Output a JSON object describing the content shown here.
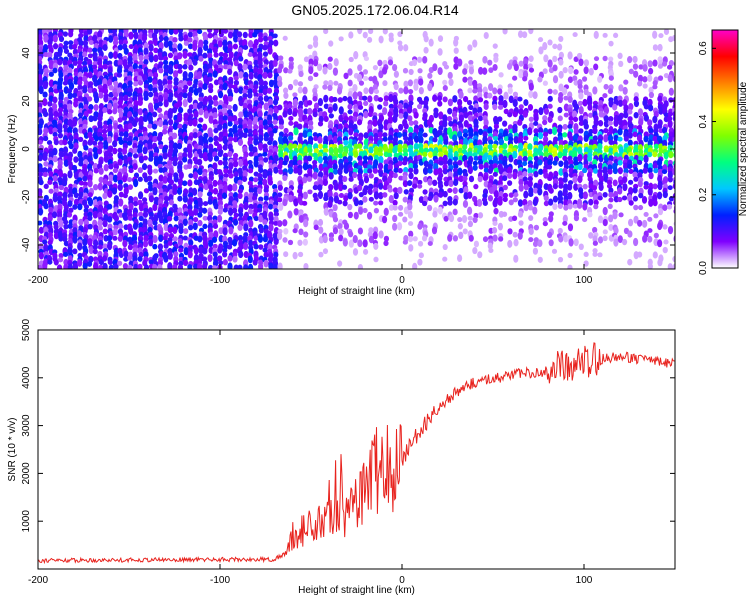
{
  "title": "GN05.2025.172.06.04.R14",
  "colors": {
    "axis": "#000000",
    "snr_line": "#e8231e",
    "colormap": [
      "#ffffff",
      "#7f00ff",
      "#0020ff",
      "#00c8ff",
      "#00ff80",
      "#80ff00",
      "#ffff00",
      "#ff8000",
      "#ff0000",
      "#ff00c8"
    ]
  },
  "chart_data": [
    {
      "type": "heatmap",
      "name": "spectrogram",
      "xlabel": "Height of straight line (km)",
      "ylabel": "Frequency (Hz)",
      "xlim": [
        -200,
        150
      ],
      "ylim": [
        -50,
        50
      ],
      "xticks": [
        -200,
        -100,
        0,
        100
      ],
      "yticks": [
        -40,
        -20,
        0,
        20,
        40
      ],
      "colorbar": {
        "label": "Normalized spectral amplitude",
        "range": [
          0.0,
          0.65
        ],
        "ticks": [
          0.0,
          0.2,
          0.4,
          0.6
        ],
        "tick_labels": [
          "0.0",
          "0.2",
          "0.4",
          "0.6"
        ]
      },
      "grid": false,
      "features": {
        "noise_region_x": [
          -200,
          -70
        ],
        "noise_level": 0.08,
        "signal_onset_x": -70,
        "signal_center_freq_hz": 0,
        "signal_peak_amplitude": 0.4,
        "signal_band_half_width_hz": 4
      }
    },
    {
      "type": "line",
      "name": "snr",
      "xlabel": "Height of straight line (km)",
      "ylabel": "SNR (10 * v/v)",
      "xlim": [
        -200,
        150
      ],
      "ylim": [
        0,
        5000
      ],
      "xticks": [
        -200,
        -100,
        0,
        100
      ],
      "yticks": [
        1000,
        2000,
        3000,
        4000,
        5000
      ],
      "grid": false,
      "series": [
        {
          "x": [
            -200,
            -150,
            -100,
            -70,
            -63,
            -60,
            -50,
            -40,
            -30,
            -25,
            -20,
            -16,
            -12,
            -8,
            -4,
            0,
            10,
            20,
            30,
            40,
            50,
            60,
            70,
            80,
            85,
            90,
            95,
            100,
            105,
            110,
            120,
            130,
            140,
            150
          ],
          "y": [
            180,
            190,
            200,
            200,
            350,
            700,
            900,
            1000,
            1100,
            1400,
            1600,
            2100,
            2000,
            2000,
            2050,
            2300,
            2900,
            3400,
            3700,
            3900,
            4000,
            4050,
            4100,
            4150,
            4200,
            4250,
            4300,
            4350,
            4350,
            4400,
            4450,
            4400,
            4350,
            4300
          ]
        }
      ]
    }
  ]
}
